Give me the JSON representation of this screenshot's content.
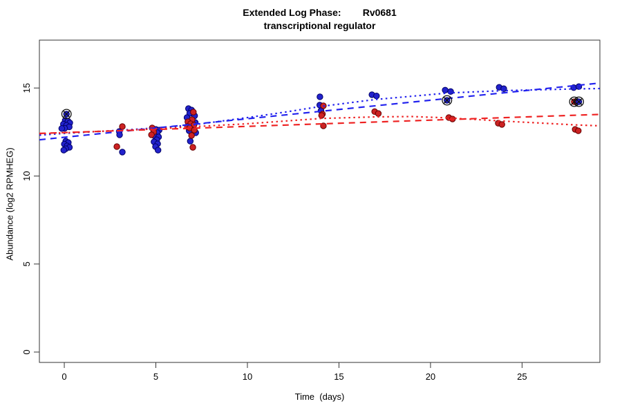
{
  "title": {
    "line1": "Extended Log Phase:        Rv0681",
    "line2": "transcriptional regulator"
  },
  "axes": {
    "x_label": "Time  (days)",
    "y_label": "Abundance  (log2 RPMHEG)"
  },
  "colors": {
    "blue_point": "#2222cc",
    "blue_point_edge": "#000066",
    "red_point": "#cc2222",
    "red_point_edge": "#660000",
    "blue_line": "#2222ee",
    "red_line": "#ee2222",
    "flag_marker": "#111111",
    "axis": "#333333"
  },
  "chart_data": {
    "type": "scatter",
    "title": "Extended Log Phase: Rv0681 transcriptional regulator",
    "xlabel": "Time (days)",
    "ylabel": "Abundance (log2 RPMHEG)",
    "xlim": [
      -1.36,
      29.25
    ],
    "ylim": [
      -0.59,
      17.72
    ],
    "x_ticks": [
      0,
      5,
      10,
      15,
      20,
      25
    ],
    "y_ticks": [
      0,
      5,
      10,
      15
    ],
    "grid": false,
    "legend": "none",
    "series": [
      {
        "name": "blue",
        "color": "#2222cc",
        "points": [
          [
            0.05,
            13.16
          ],
          [
            0.2,
            13.12
          ],
          [
            0.3,
            13.02
          ],
          [
            -0.05,
            12.95
          ],
          [
            0.12,
            12.88
          ],
          [
            0.27,
            12.79
          ],
          [
            0.02,
            12.71
          ],
          [
            -0.14,
            12.7
          ],
          [
            0.08,
            11.98
          ],
          [
            0.22,
            11.9
          ],
          [
            0.0,
            11.81
          ],
          [
            0.15,
            11.71
          ],
          [
            0.28,
            11.63
          ],
          [
            0.08,
            11.55
          ],
          [
            -0.03,
            11.47
          ],
          [
            3.0,
            12.53
          ],
          [
            3.02,
            12.34
          ],
          [
            3.17,
            11.36
          ],
          [
            5.0,
            12.65
          ],
          [
            5.18,
            12.61
          ],
          [
            5.08,
            12.46
          ],
          [
            4.95,
            12.26
          ],
          [
            5.15,
            12.22
          ],
          [
            5.05,
            12.06
          ],
          [
            4.9,
            11.94
          ],
          [
            5.1,
            11.83
          ],
          [
            4.98,
            11.67
          ],
          [
            5.12,
            11.47
          ],
          [
            6.78,
            13.83
          ],
          [
            6.95,
            13.75
          ],
          [
            6.85,
            13.56
          ],
          [
            7.12,
            13.42
          ],
          [
            6.7,
            13.32
          ],
          [
            7.15,
            13.04
          ],
          [
            6.82,
            12.57
          ],
          [
            7.18,
            12.46
          ],
          [
            6.88,
            11.98
          ],
          [
            13.96,
            14.5
          ],
          [
            13.95,
            14.03
          ],
          [
            14.02,
            13.71
          ],
          [
            16.8,
            14.62
          ],
          [
            17.05,
            14.55
          ],
          [
            20.8,
            14.88
          ],
          [
            21.1,
            14.8
          ],
          [
            23.75,
            15.04
          ],
          [
            24.0,
            14.96
          ],
          [
            27.82,
            15.02
          ],
          [
            28.1,
            15.08
          ]
        ]
      },
      {
        "name": "red",
        "color": "#cc2222",
        "points": [
          [
            3.17,
            12.81
          ],
          [
            2.87,
            11.67
          ],
          [
            4.8,
            12.73
          ],
          [
            4.88,
            12.5
          ],
          [
            4.76,
            12.34
          ],
          [
            7.05,
            13.63
          ],
          [
            6.98,
            13.2
          ],
          [
            6.75,
            13.08
          ],
          [
            6.9,
            12.97
          ],
          [
            7.08,
            12.89
          ],
          [
            6.72,
            12.81
          ],
          [
            6.85,
            12.73
          ],
          [
            7.1,
            12.61
          ],
          [
            6.95,
            12.3
          ],
          [
            7.02,
            11.63
          ],
          [
            14.15,
            13.99
          ],
          [
            14.1,
            13.52
          ],
          [
            14.05,
            13.44
          ],
          [
            14.15,
            12.85
          ],
          [
            16.95,
            13.66
          ],
          [
            17.15,
            13.55
          ],
          [
            21.0,
            13.32
          ],
          [
            21.2,
            13.24
          ],
          [
            23.7,
            13.0
          ],
          [
            23.9,
            12.93
          ],
          [
            27.9,
            12.65
          ],
          [
            28.07,
            12.57
          ]
        ]
      }
    ],
    "flagged_points": [
      {
        "x": 0.12,
        "y": 13.52,
        "series": "blue"
      },
      {
        "x": 20.9,
        "y": 14.3,
        "series": "blue"
      },
      {
        "x": 27.85,
        "y": 14.22,
        "series": "red"
      },
      {
        "x": 28.1,
        "y": 14.22,
        "series": "blue"
      }
    ],
    "trend_lines": [
      {
        "name": "blue-dashed",
        "color": "#2222ee",
        "style": "dashed",
        "points": [
          [
            -1.36,
            12.06
          ],
          [
            29.25,
            15.28
          ]
        ]
      },
      {
        "name": "blue-dotted",
        "color": "#2222ee",
        "style": "dotted",
        "points": [
          [
            -1.36,
            12.32
          ],
          [
            0,
            12.42
          ],
          [
            3,
            12.6
          ],
          [
            5,
            12.73
          ],
          [
            7,
            12.9
          ],
          [
            10,
            13.32
          ],
          [
            12,
            13.62
          ],
          [
            14,
            13.95
          ],
          [
            17,
            14.35
          ],
          [
            21,
            14.72
          ],
          [
            24,
            14.85
          ],
          [
            28,
            14.95
          ],
          [
            29.25,
            14.97
          ]
        ]
      },
      {
        "name": "red-dashed",
        "color": "#ee2222",
        "style": "dashed",
        "points": [
          [
            -1.36,
            12.42
          ],
          [
            29.25,
            13.5
          ]
        ]
      },
      {
        "name": "red-dotted",
        "color": "#ee2222",
        "style": "dotted",
        "points": [
          [
            -1.36,
            12.4
          ],
          [
            0,
            12.46
          ],
          [
            3,
            12.58
          ],
          [
            5,
            12.68
          ],
          [
            7,
            12.8
          ],
          [
            10,
            12.97
          ],
          [
            14,
            13.27
          ],
          [
            17,
            13.36
          ],
          [
            19,
            13.38
          ],
          [
            21,
            13.3
          ],
          [
            24,
            13.12
          ],
          [
            28,
            12.9
          ],
          [
            29.25,
            12.85
          ]
        ]
      }
    ]
  }
}
